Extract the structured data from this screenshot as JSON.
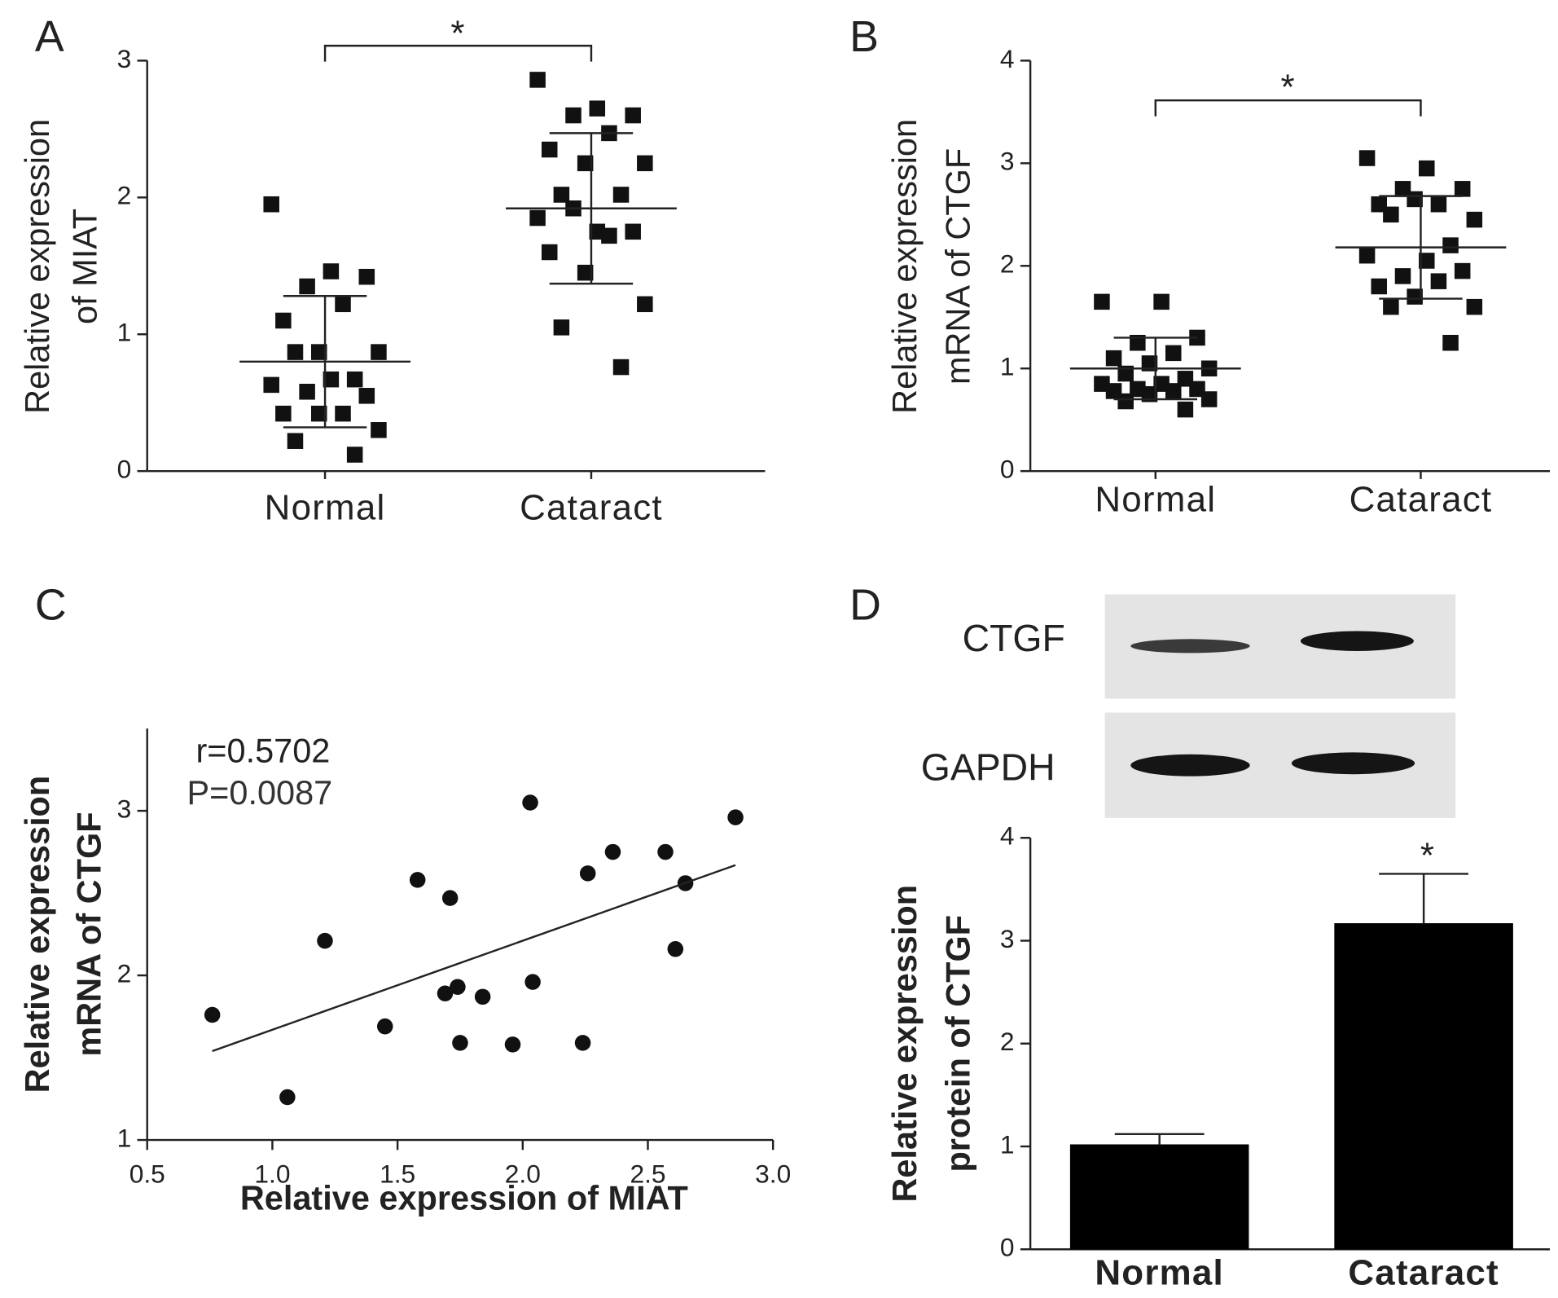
{
  "chart_data": [
    {
      "type": "dot",
      "panel": "A",
      "ylabel": [
        "Relative expression",
        "of MIAT"
      ],
      "categories": [
        "Normal",
        "Cataract"
      ],
      "values": [
        [
          1.95,
          1.46,
          1.42,
          1.35,
          1.22,
          1.1,
          0.87,
          0.87,
          0.87,
          0.67,
          0.63,
          0.67,
          0.55,
          0.58,
          0.42,
          0.42,
          0.42,
          0.3,
          0.22,
          0.12
        ],
        [
          2.86,
          2.65,
          2.6,
          2.6,
          2.47,
          2.35,
          2.25,
          2.25,
          2.02,
          2.02,
          1.85,
          1.75,
          1.75,
          1.92,
          1.72,
          1.6,
          1.45,
          1.22,
          1.05,
          0.76
        ]
      ],
      "means": [
        0.8,
        1.92
      ],
      "sds": [
        0.48,
        0.55
      ],
      "color": "#111111",
      "ylim": [
        0,
        3
      ],
      "yticks": [
        0,
        1,
        2,
        3
      ],
      "annotation": "*"
    },
    {
      "type": "dot",
      "panel": "B",
      "ylabel": [
        "Relative expression",
        "mRNA of CTGF"
      ],
      "categories": [
        "Normal",
        "Cataract"
      ],
      "values": [
        [
          1.65,
          1.65,
          1.3,
          1.25,
          1.15,
          1.1,
          1.05,
          1.0,
          0.95,
          0.9,
          0.85,
          0.85,
          0.8,
          0.8,
          0.78,
          0.78,
          0.75,
          0.7,
          0.68,
          0.6
        ],
        [
          3.05,
          2.95,
          2.75,
          2.75,
          2.6,
          2.6,
          2.65,
          2.45,
          2.5,
          2.2,
          2.1,
          2.05,
          1.95,
          1.9,
          1.85,
          1.8,
          1.7,
          1.6,
          1.6,
          1.25
        ]
      ],
      "means": [
        1.0,
        2.18
      ],
      "sds": [
        0.3,
        0.5
      ],
      "color": "#111111",
      "ylim": [
        0,
        4
      ],
      "yticks": [
        0,
        1,
        2,
        3,
        4
      ],
      "annotation": "*"
    },
    {
      "type": "scatter",
      "panel": "C",
      "ylabel": [
        "Relative expression",
        "mRNA of CTGF"
      ],
      "xlabel": "Relative expression of MIAT",
      "x": [
        0.76,
        1.06,
        1.21,
        1.45,
        1.58,
        1.69,
        1.71,
        1.74,
        1.75,
        1.84,
        1.96,
        2.03,
        2.04,
        2.24,
        2.26,
        2.36,
        2.57,
        2.61,
        2.65,
        2.85
      ],
      "y": [
        1.76,
        1.26,
        2.21,
        1.69,
        2.58,
        1.89,
        2.47,
        1.93,
        1.59,
        1.87,
        1.58,
        3.05,
        1.96,
        1.59,
        2.62,
        2.75,
        2.75,
        2.16,
        2.56,
        2.96
      ],
      "fit_x": [
        0.76,
        2.85
      ],
      "fit_y": [
        1.54,
        2.67
      ],
      "color": "#111111",
      "xlim": [
        0.5,
        3.0
      ],
      "xticks": [
        0.5,
        {
          "value": 1,
          "label": "1.0"
        },
        1.5,
        {
          "value": 2,
          "label": "2.0"
        },
        2.5,
        {
          "value": 3,
          "label": "3.0"
        }
      ],
      "ylim": [
        1,
        3.5
      ],
      "yticks": [
        1,
        2,
        3
      ],
      "annotations": [
        "r=0.5702",
        "P=0.0087"
      ]
    },
    {
      "type": "bar",
      "panel": "D",
      "ylabel": [
        "Relative expression",
        "protein of CTGF"
      ],
      "blot_labels": [
        "CTGF",
        "GAPDH"
      ],
      "categories": [
        "Normal",
        "Cataract"
      ],
      "values": [
        1.02,
        3.17
      ],
      "errors": [
        0.1,
        0.48
      ],
      "color": "#000000",
      "ylim": [
        0,
        4
      ],
      "yticks": [
        0,
        1,
        2,
        3,
        4
      ],
      "annotation": "*"
    }
  ]
}
